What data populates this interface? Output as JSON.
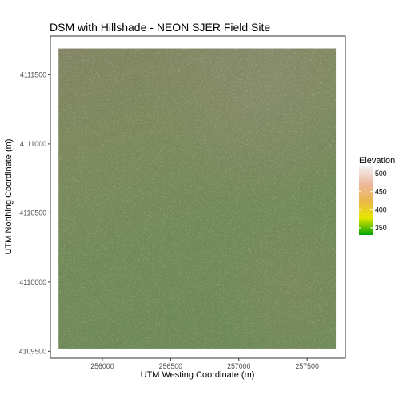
{
  "chart_data": {
    "type": "heatmap",
    "title": "DSM with Hillshade - NEON SJER Field Site",
    "xlabel": "UTM Westing Coordinate (m)",
    "ylabel": "UTM Northing Coordinate (m)",
    "xlim": [
      255620,
      257780
    ],
    "ylim": [
      4109450,
      4111780
    ],
    "raster_extent": {
      "xmin": 255680,
      "xmax": 257710,
      "ymin": 4109520,
      "ymax": 4111690
    },
    "x_ticks": [
      256000,
      256500,
      257000,
      257500
    ],
    "x_tick_labels": [
      "256000",
      "256500",
      "257000",
      "257500"
    ],
    "y_ticks": [
      4109500,
      4110000,
      4110500,
      4111000,
      4111500
    ],
    "y_tick_labels": [
      "4109500",
      "4110000",
      "4110500",
      "4111000",
      "4111500"
    ],
    "grid": false,
    "legend": {
      "title": "Elevation",
      "placement": "right",
      "range": [
        330,
        520
      ],
      "breaks": [
        350,
        400,
        450,
        500
      ],
      "break_labels": [
        "350",
        "400",
        "450",
        "500"
      ],
      "colors": [
        "#00A600",
        "#E6E600",
        "#EAB64E",
        "#EEB99F",
        "#F2F2F2"
      ]
    },
    "colors": {
      "terrain_low": "#5f8a55",
      "terrain_high": "#8c7f6e",
      "speckle": "#c8c27a"
    }
  }
}
